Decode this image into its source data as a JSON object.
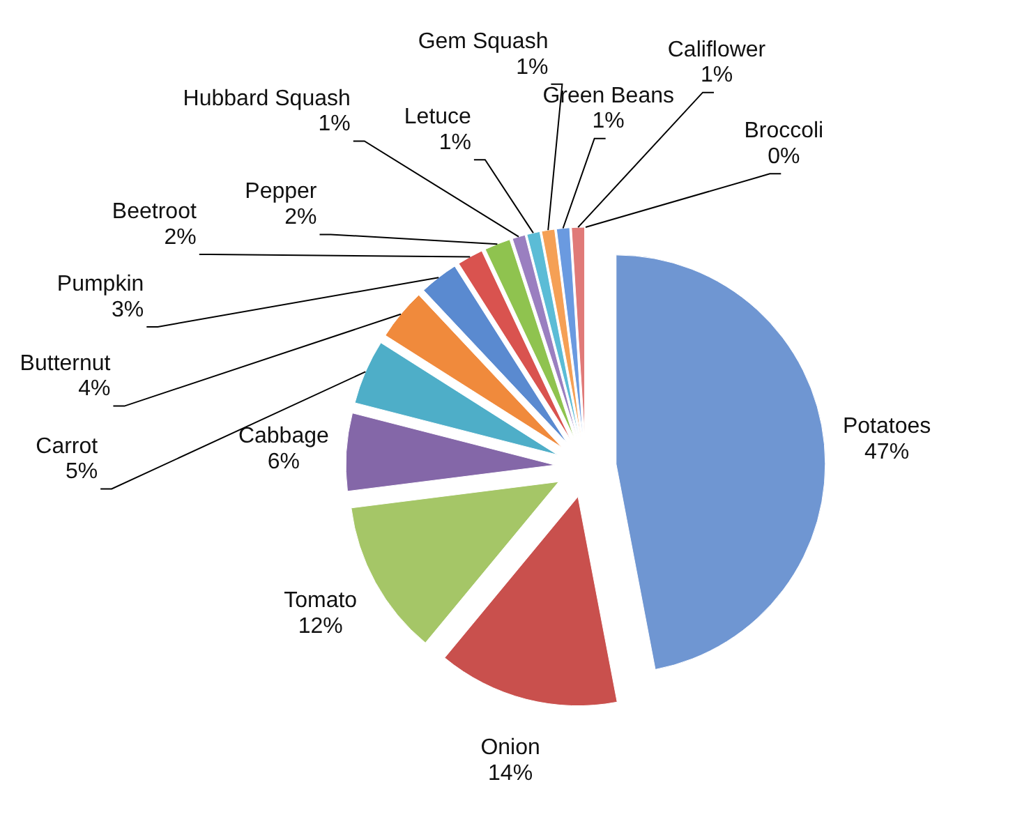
{
  "chart_data": {
    "type": "pie",
    "categories": [
      "Potatoes",
      "Onion",
      "Tomato",
      "Cabbage",
      "Carrot",
      "Butternut",
      "Pumpkin",
      "Beetroot",
      "Pepper",
      "Hubbard Squash",
      "Letuce",
      "Gem Squash",
      "Green Beans",
      "Califlower",
      "Broccoli"
    ],
    "values": [
      47,
      14,
      12,
      6,
      5,
      4,
      3,
      2,
      2,
      1,
      1,
      1,
      1,
      1,
      0
    ],
    "value_labels": [
      "47%",
      "14%",
      "12%",
      "6%",
      "5%",
      "4%",
      "3%",
      "2%",
      "2%",
      "1%",
      "1%",
      "1%",
      "1%",
      "1%",
      "0%"
    ],
    "colors": [
      "#6f96d2",
      "#c9504d",
      "#a5c667",
      "#8467a8",
      "#4eaec8",
      "#f08a3c",
      "#5a8ad0",
      "#d9534f",
      "#8fc34f",
      "#9a7fc0",
      "#5bbcd6",
      "#f5a055",
      "#6a9ae0",
      "#e07a78",
      "#a6c86a"
    ]
  }
}
